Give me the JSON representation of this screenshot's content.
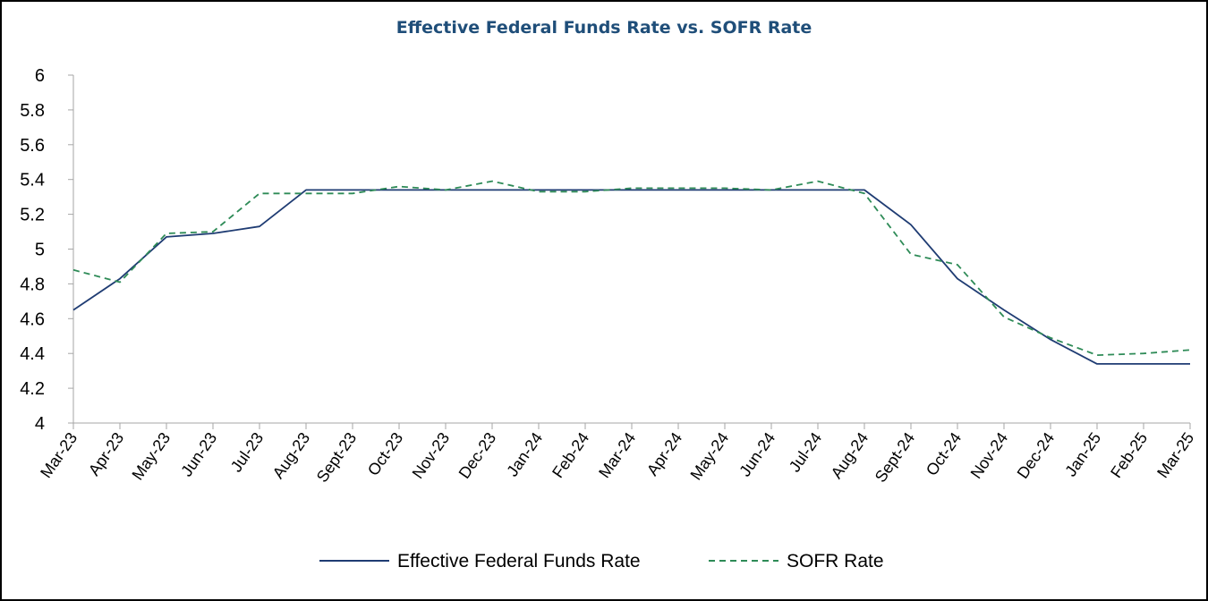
{
  "chart_data": {
    "type": "line",
    "title": "Effective Federal Funds Rate vs. SOFR Rate",
    "xlabel": "",
    "ylabel": "",
    "ylim": [
      4,
      6
    ],
    "yticks": [
      "4",
      "4.2",
      "4.4",
      "4.6",
      "4.8",
      "5",
      "5.2",
      "5.4",
      "5.6",
      "5.8",
      "6"
    ],
    "categories": [
      "Mar-23",
      "Apr-23",
      "May-23",
      "Jun-23",
      "Jul-23",
      "Aug-23",
      "Sept-23",
      "Oct-23",
      "Nov-23",
      "Dec-23",
      "Jan-24",
      "Feb-24",
      "Mar-24",
      "Apr-24",
      "May-24",
      "Jun-24",
      "Jul-24",
      "Aug-24",
      "Sept-24",
      "Oct-24",
      "Nov-24",
      "Dec-24",
      "Jan-25",
      "Feb-25",
      "Mar-25"
    ],
    "series": [
      {
        "name": "Effective Federal Funds Rate",
        "color": "#1f3c73",
        "style": "solid",
        "values": [
          4.65,
          4.83,
          5.07,
          5.09,
          5.13,
          5.34,
          5.34,
          5.34,
          5.34,
          5.34,
          5.34,
          5.34,
          5.34,
          5.34,
          5.34,
          5.34,
          5.34,
          5.34,
          5.14,
          4.83,
          4.65,
          4.48,
          4.34,
          4.34,
          4.34
        ]
      },
      {
        "name": "SOFR Rate",
        "color": "#2e8b57",
        "style": "dashed",
        "values": [
          4.88,
          4.81,
          5.09,
          5.1,
          5.32,
          5.32,
          5.32,
          5.36,
          5.34,
          5.39,
          5.33,
          5.33,
          5.35,
          5.35,
          5.35,
          5.34,
          5.39,
          5.32,
          4.97,
          4.91,
          4.61,
          4.49,
          4.39,
          4.4,
          4.42
        ]
      }
    ],
    "legend": "bottom",
    "grid": false
  }
}
